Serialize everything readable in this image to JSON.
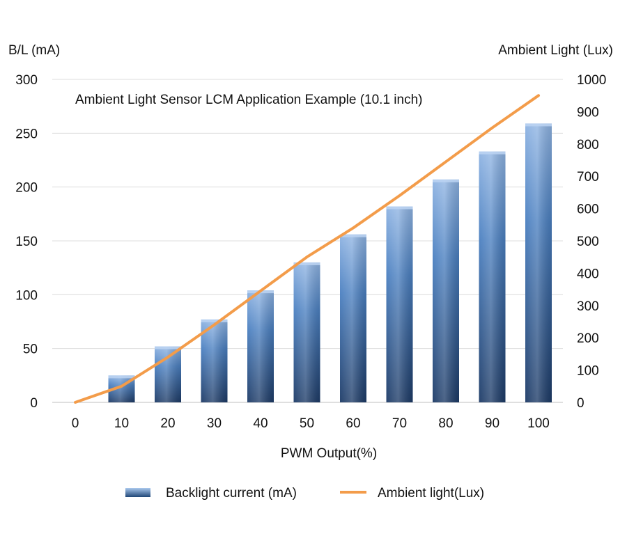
{
  "chart_data": {
    "type": "bar+line",
    "title": "Ambient Light Sensor LCM Application Example (10.1 inch)",
    "xlabel": "PWM Output(%)",
    "ylabel_left": "B/L (mA)",
    "ylabel_right": "Ambient Light (Lux)",
    "categories": [
      "0",
      "10",
      "20",
      "30",
      "40",
      "50",
      "60",
      "70",
      "80",
      "90",
      "100"
    ],
    "ylim_left": [
      0,
      300
    ],
    "ylim_right": [
      0,
      1000
    ],
    "yticks_left": [
      "0",
      "50",
      "100",
      "150",
      "200",
      "250",
      "300"
    ],
    "yticks_right": [
      "0",
      "100",
      "200",
      "300",
      "400",
      "500",
      "600",
      "700",
      "800",
      "900",
      "1000"
    ],
    "grid": true,
    "legend_position": "bottom",
    "series": [
      {
        "name": "Backlight current (mA)",
        "type": "bar",
        "axis": "left",
        "color": "#3f6fb0",
        "values": [
          0,
          25,
          52,
          77,
          104,
          130,
          156,
          182,
          207,
          233,
          259
        ]
      },
      {
        "name": "Ambient light(Lux)",
        "type": "line",
        "axis": "right",
        "color": "#f39c4a",
        "values": [
          0,
          50,
          140,
          240,
          345,
          450,
          540,
          640,
          745,
          850,
          950
        ]
      }
    ]
  }
}
